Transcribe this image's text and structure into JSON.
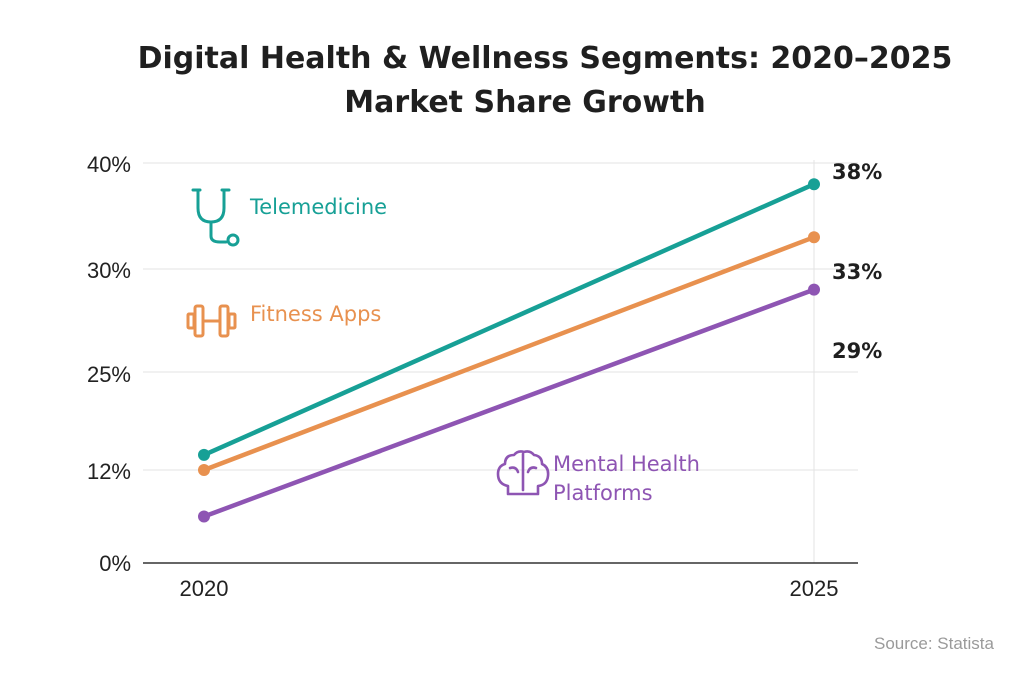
{
  "chart_data": {
    "type": "line",
    "title_lines": [
      "Digital Health & Wellness Segments: 2020–2025",
      "Market Share Growth"
    ],
    "categories": [
      "2020",
      "2025"
    ],
    "y_ticks": [
      "0%",
      "12%",
      "25%",
      "30%",
      "40%"
    ],
    "series": [
      {
        "name": "Telemedicine",
        "name_lines": [
          "Telemedicine"
        ],
        "color": "#17a096",
        "icon": "stethoscope-icon",
        "values": [
          14,
          38
        ],
        "end_label": "38%"
      },
      {
        "name": "Fitness Apps",
        "name_lines": [
          "Fitness Apps"
        ],
        "color": "#e8914f",
        "icon": "dumbbell-icon",
        "values": [
          12,
          33
        ],
        "end_label": "33%"
      },
      {
        "name": "Mental Health Platforms",
        "name_lines": [
          "Mental Health",
          "Platforms"
        ],
        "color": "#8e55b3",
        "icon": "brain-icon",
        "values": [
          6,
          29
        ],
        "end_label": "29%"
      }
    ],
    "grid": true,
    "source": "Source: Statista"
  }
}
